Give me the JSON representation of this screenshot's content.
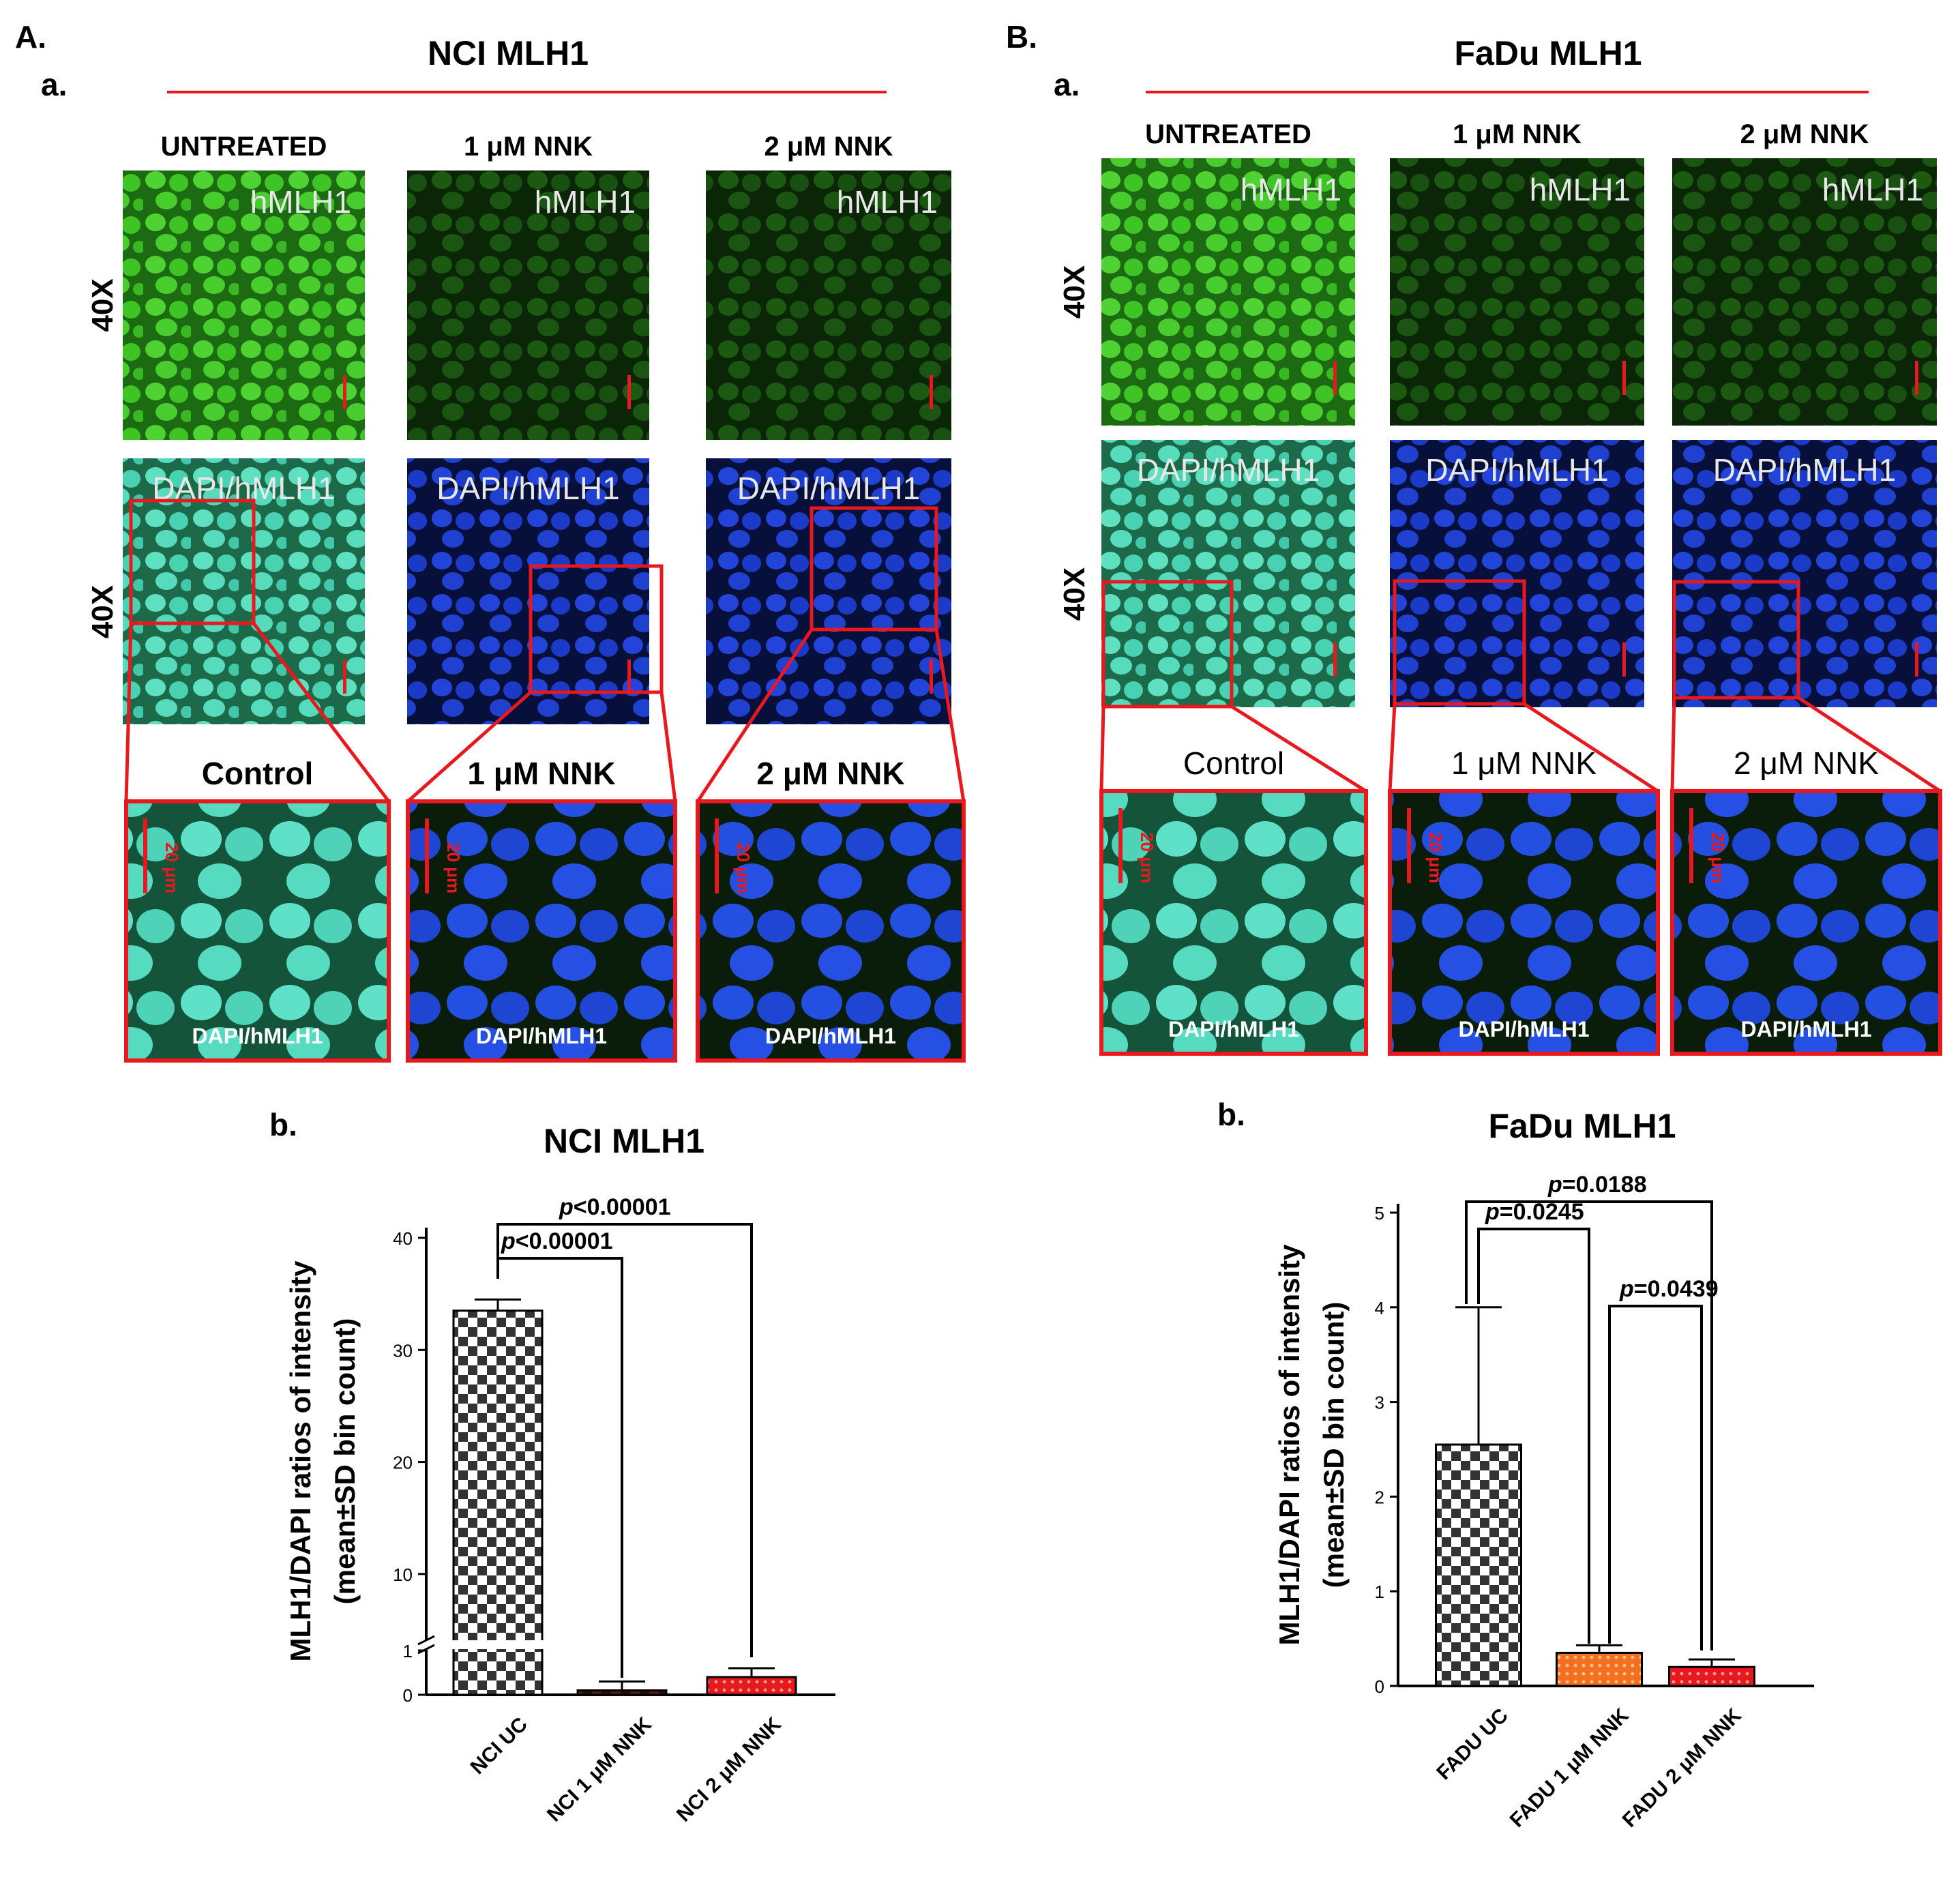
{
  "panelA": {
    "letter": "A.",
    "sub_a": "a.",
    "sub_b": "b.",
    "title": "NCI MLH1",
    "columns": [
      "UNTREATED",
      "1 μM NNK",
      "2 μM NNK"
    ],
    "magnification": "40X",
    "row1_label": "hMLH1",
    "row2_label": "DAPI/hMLH1",
    "zoom_labels": [
      "Control",
      "1 μM NNK",
      "2 μM NNK"
    ],
    "zoom_bottom_label": "DAPI/hMLH1",
    "scalebar": "20 μm"
  },
  "panelB": {
    "letter": "B.",
    "sub_a": "a.",
    "sub_b": "b.",
    "title": "FaDu MLH1",
    "columns": [
      "UNTREATED",
      "1 μM NNK",
      "2 μM NNK"
    ],
    "magnification": "40X",
    "row1_label": "hMLH1",
    "row2_label": "DAPI/hMLH1",
    "zoom_labels": [
      "Control",
      "1 μM NNK",
      "2 μM NNK"
    ],
    "zoom_bottom_label": "DAPI/hMLH1",
    "scalebar": "20 μm"
  },
  "colors": {
    "red_frame": "#e8191e",
    "hmlh1_bright": "#35b41f",
    "hmlh1_dim": "#14420c",
    "dapi": "#1b3ac9",
    "merge": "#3fd4b8",
    "bar_orange": "#f37021",
    "bar_red": "#e8191e",
    "bar_dark": "#5a1a10"
  },
  "chart_data": [
    {
      "type": "bar",
      "title": "NCI MLH1",
      "ylabel": "MLH1/DAPI ratios of intensity (mean±SD bin count)",
      "ylabel_line1": "MLH1/DAPI ratios of  intensity",
      "ylabel_line2": "(mean±SD bin count)",
      "xlabel": "",
      "categories": [
        "NCI UC",
        "NCI 1 μM NNK",
        "NCI 2 μM NNK"
      ],
      "values": [
        33.5,
        0.1,
        0.4
      ],
      "errors": [
        1.0,
        0.2,
        0.2
      ],
      "ylim": [
        0,
        40
      ],
      "axis_break": [
        1,
        5
      ],
      "yticks": [
        "0",
        "1",
        "10",
        "20",
        "30",
        "40"
      ],
      "annotations": [
        {
          "from": "NCI UC",
          "to": "NCI 1 μM NNK",
          "prefix": "p",
          "text": "<0.00001"
        },
        {
          "from": "NCI UC",
          "to": "NCI 2 μM NNK",
          "prefix": "p",
          "text": "<0.00001"
        }
      ],
      "grid": false,
      "legend": "none"
    },
    {
      "type": "bar",
      "title": "FaDu MLH1",
      "ylabel": "MLH1/DAPI ratios of intensity (mean±SD bin count)",
      "ylabel_line1": "MLH1/DAPI ratios of  intensity",
      "ylabel_line2": "(mean±SD bin count)",
      "xlabel": "",
      "categories": [
        "FADU UC",
        "FADU 1 μM NNK",
        "FADU 2 μM NNK"
      ],
      "values": [
        2.55,
        0.35,
        0.2
      ],
      "errors": [
        1.45,
        0.08,
        0.08
      ],
      "ylim": [
        0,
        5
      ],
      "yticks": [
        "0",
        "1",
        "2",
        "3",
        "4",
        "5"
      ],
      "annotations": [
        {
          "from": "FADU UC",
          "to": "FADU 1 μM NNK",
          "prefix": "p",
          "text": "=0.0245"
        },
        {
          "from": "FADU UC",
          "to": "FADU 2 μM NNK",
          "prefix": "p",
          "text": "=0.0188"
        },
        {
          "from": "FADU 1 μM NNK",
          "to": "FADU 2 μM NNK",
          "prefix": "p",
          "text": "=0.0439"
        }
      ],
      "grid": false,
      "legend": "none"
    }
  ]
}
